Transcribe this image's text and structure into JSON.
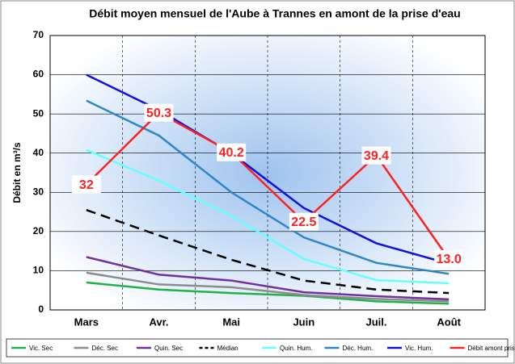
{
  "chart_data": {
    "type": "line",
    "title": "Débit moyen mensuel de l'Aube à Trannes en amont de la prise d'eau",
    "y_label": "Débit en m³/s",
    "categories": [
      "Mars",
      "Avr.",
      "Mai",
      "Juin",
      "Juil.",
      "Août"
    ],
    "ylim": [
      0,
      70
    ],
    "yticks": [
      0,
      10,
      20,
      30,
      40,
      50,
      60,
      70
    ],
    "grid": true,
    "series": [
      {
        "name": "Vic. Sec",
        "color": "#22b04a",
        "values": [
          7,
          5.2,
          4.3,
          3.6,
          2.2,
          1.6
        ]
      },
      {
        "name": "Déc. Sec",
        "color": "#8c8c8c",
        "values": [
          9.5,
          6.5,
          5.8,
          3.8,
          2.8,
          2.2
        ]
      },
      {
        "name": "Quin. Sec",
        "color": "#7030a0",
        "values": [
          13.5,
          9,
          7.5,
          4.5,
          3.5,
          2.7
        ]
      },
      {
        "name": "Médian",
        "color": "#000000",
        "dashed": true,
        "values": [
          25.5,
          19,
          12.8,
          7.5,
          5.2,
          4.3
        ]
      },
      {
        "name": "Quin. Hum.",
        "color": "#66ffff",
        "values": [
          40.8,
          33,
          24,
          13,
          7.6,
          6.8
        ]
      },
      {
        "name": "Déc. Hum.",
        "color": "#2e86c8",
        "values": [
          53.4,
          44.5,
          30,
          18.5,
          12,
          9.2
        ]
      },
      {
        "name": "Vic. Hum.",
        "color": "#1010e0",
        "values": [
          60,
          51,
          40,
          26,
          17,
          11.8
        ]
      },
      {
        "name": "Débit amont prise",
        "color": "#ff2020",
        "values": [
          32,
          50.3,
          40.2,
          22.5,
          39.4,
          13.0
        ],
        "value_labels": [
          "32",
          "50.3",
          "40.2",
          "22.5",
          "39.4",
          "13.0"
        ]
      }
    ]
  }
}
